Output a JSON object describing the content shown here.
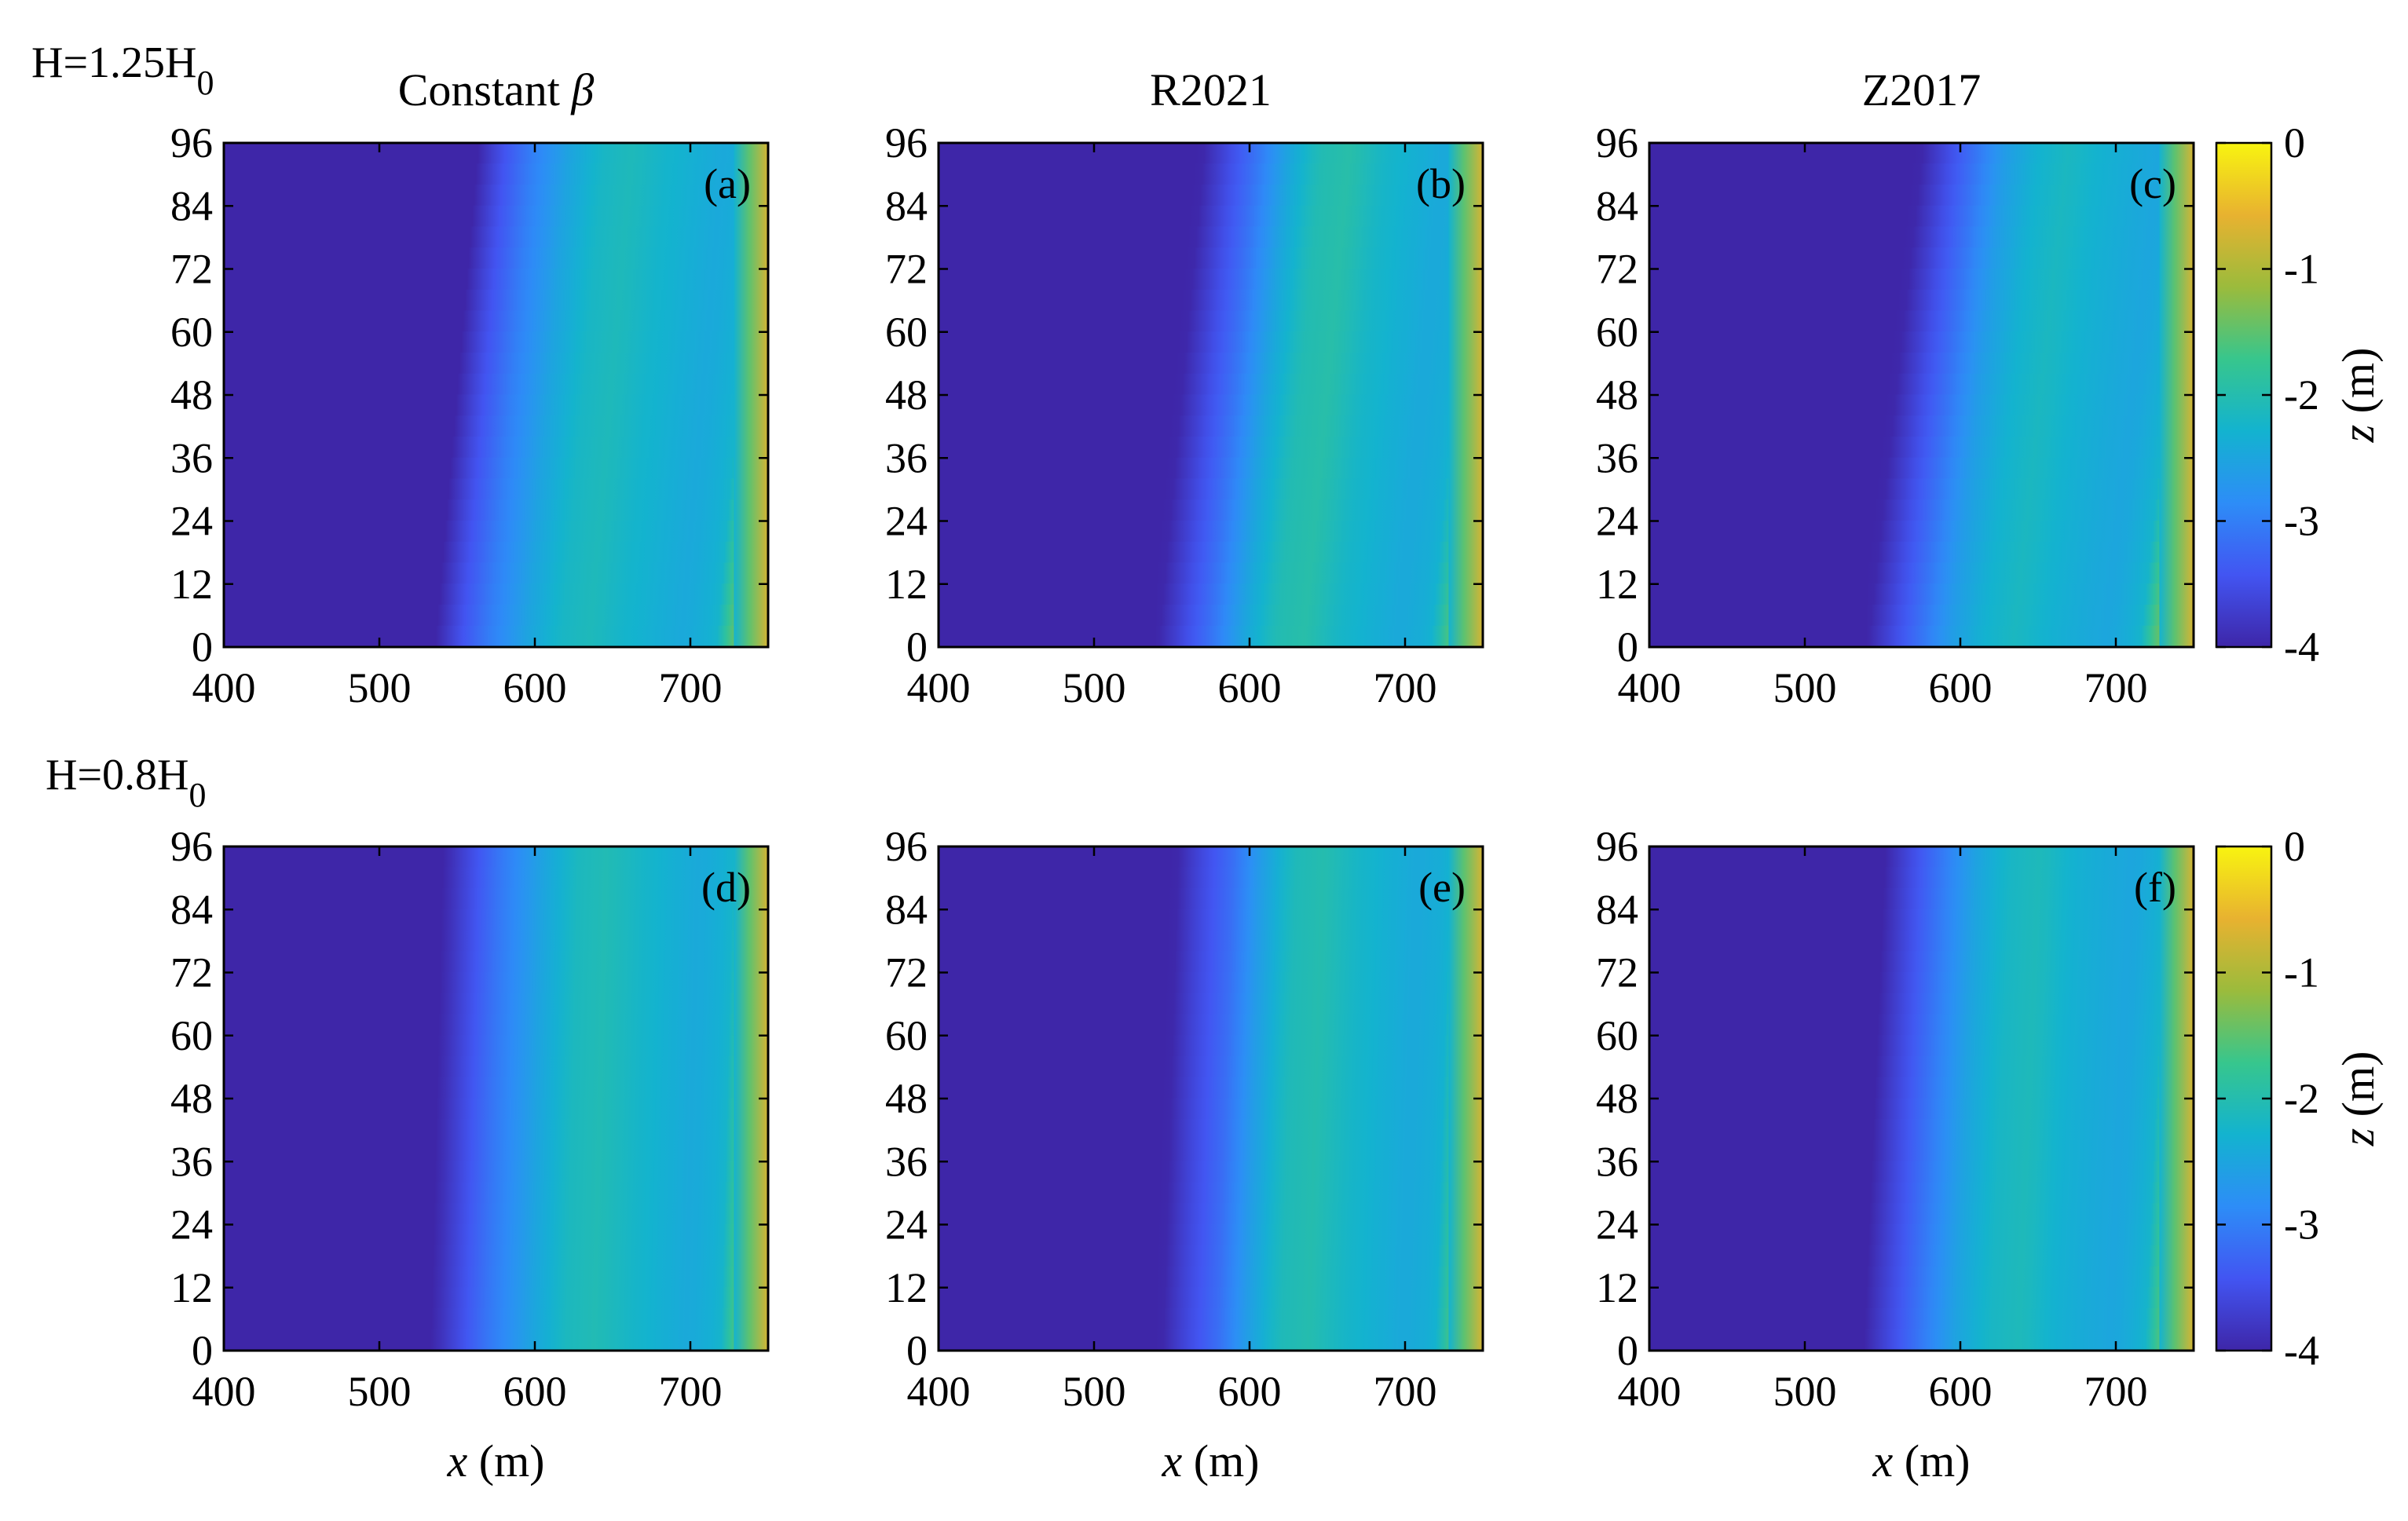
{
  "chart_data": [
    {
      "type": "heatmap",
      "panel": "(a)",
      "title": "Constant β",
      "row_label_main": "H=1.25H",
      "row_label_sub": "0",
      "xlim": [
        400,
        750
      ],
      "xticks": [
        400,
        500,
        600,
        700
      ],
      "ylim": [
        0,
        96
      ],
      "yticks": [
        0,
        12,
        24,
        36,
        48,
        60,
        72,
        84,
        96
      ],
      "xlabel": "",
      "ylabel": "",
      "zlabel": "z (m)",
      "zlim": [
        -4,
        0
      ],
      "profile_x": [
        400,
        540,
        555,
        575,
        600,
        620,
        640,
        660,
        700,
        720,
        730,
        740,
        750
      ],
      "profile_z": [
        -4,
        -4,
        -3.5,
        -3.0,
        -2.5,
        -2.2,
        -2.1,
        -2.25,
        -2.45,
        -2.3,
        -1.6,
        -1.0,
        -0.8
      ],
      "shoal_shift": 28
    },
    {
      "type": "heatmap",
      "panel": "(b)",
      "title": "R2021",
      "xlim": [
        400,
        750
      ],
      "xticks": [
        400,
        500,
        600,
        700
      ],
      "ylim": [
        0,
        96
      ],
      "yticks": [
        0,
        12,
        24,
        36,
        48,
        60,
        72,
        84,
        96
      ],
      "xlabel": "",
      "ylabel": "",
      "zlabel": "z (m)",
      "zlim": [
        -4,
        0
      ],
      "profile_x": [
        400,
        545,
        560,
        580,
        600,
        620,
        640,
        660,
        700,
        720,
        730,
        740,
        750
      ],
      "profile_z": [
        -4,
        -4,
        -3.6,
        -3.1,
        -2.5,
        -2.05,
        -1.95,
        -2.2,
        -2.45,
        -2.35,
        -1.8,
        -1.0,
        -0.8
      ],
      "shoal_shift": 30
    },
    {
      "type": "heatmap",
      "panel": "(c)",
      "title": "Z2017",
      "xlim": [
        400,
        750
      ],
      "xticks": [
        400,
        500,
        600,
        700
      ],
      "ylim": [
        0,
        96
      ],
      "yticks": [
        0,
        12,
        24,
        36,
        48,
        60,
        72,
        84,
        96
      ],
      "xlabel": "",
      "ylabel": "",
      "zlabel": "z (m)",
      "zlim": [
        -4,
        0
      ],
      "profile_x": [
        400,
        545,
        560,
        580,
        600,
        620,
        640,
        660,
        700,
        720,
        730,
        740,
        750
      ],
      "profile_z": [
        -4,
        -4,
        -3.6,
        -3.1,
        -2.6,
        -2.3,
        -2.15,
        -2.3,
        -2.5,
        -2.3,
        -1.6,
        -1.0,
        -0.8
      ],
      "shoal_shift": 36
    },
    {
      "type": "heatmap",
      "panel": "(d)",
      "row_label_main": "H=0.8H",
      "row_label_sub": "0",
      "xlim": [
        400,
        750
      ],
      "xticks": [
        400,
        500,
        600,
        700
      ],
      "ylim": [
        0,
        96
      ],
      "yticks": [
        0,
        12,
        24,
        36,
        48,
        60,
        72,
        84,
        96
      ],
      "xlabel": "x (m)",
      "ylabel": "",
      "zlabel": "z (m)",
      "zlim": [
        -4,
        0
      ],
      "profile_x": [
        400,
        535,
        550,
        570,
        600,
        620,
        640,
        660,
        700,
        720,
        730,
        740,
        750
      ],
      "profile_z": [
        -4,
        -4,
        -3.6,
        -3.1,
        -2.5,
        -2.15,
        -2.05,
        -2.2,
        -2.45,
        -2.3,
        -1.6,
        -1.0,
        -0.8
      ],
      "shoal_shift": 8
    },
    {
      "type": "heatmap",
      "panel": "(e)",
      "xlim": [
        400,
        750
      ],
      "xticks": [
        400,
        500,
        600,
        700
      ],
      "ylim": [
        0,
        96
      ],
      "yticks": [
        0,
        12,
        24,
        36,
        48,
        60,
        72,
        84,
        96
      ],
      "xlabel": "x (m)",
      "ylabel": "",
      "zlabel": "z (m)",
      "zlim": [
        -4,
        0
      ],
      "profile_x": [
        400,
        545,
        560,
        580,
        600,
        620,
        640,
        660,
        700,
        720,
        730,
        740,
        750
      ],
      "profile_z": [
        -4,
        -4,
        -3.6,
        -3.2,
        -2.6,
        -2.1,
        -2.0,
        -2.2,
        -2.45,
        -2.35,
        -1.7,
        -1.0,
        -0.8
      ],
      "shoal_shift": 10
    },
    {
      "type": "heatmap",
      "panel": "(f)",
      "xlim": [
        400,
        750
      ],
      "xticks": [
        400,
        500,
        600,
        700
      ],
      "ylim": [
        0,
        96
      ],
      "yticks": [
        0,
        12,
        24,
        36,
        48,
        60,
        72,
        84,
        96
      ],
      "xlabel": "x (m)",
      "ylabel": "",
      "zlabel": "z (m)",
      "zlim": [
        -4,
        0
      ],
      "profile_x": [
        400,
        540,
        555,
        575,
        600,
        620,
        640,
        660,
        700,
        720,
        730,
        740,
        750
      ],
      "profile_z": [
        -4,
        -4,
        -3.6,
        -3.1,
        -2.5,
        -2.2,
        -2.1,
        -2.3,
        -2.5,
        -2.3,
        -1.6,
        -1.0,
        -0.8
      ],
      "shoal_shift": 14
    }
  ],
  "colorbar": {
    "label": "z (m)",
    "ticks": [
      0,
      -1,
      -2,
      -3,
      -4
    ],
    "tick_labels": [
      "0",
      "-1",
      "-2",
      "-3",
      "-4"
    ],
    "colormap": "parula",
    "colors": [
      "#3e26a8",
      "#4255f2",
      "#2d8df7",
      "#13b3cf",
      "#37c68d",
      "#9bbb3c",
      "#e8b230",
      "#f8f410"
    ]
  }
}
